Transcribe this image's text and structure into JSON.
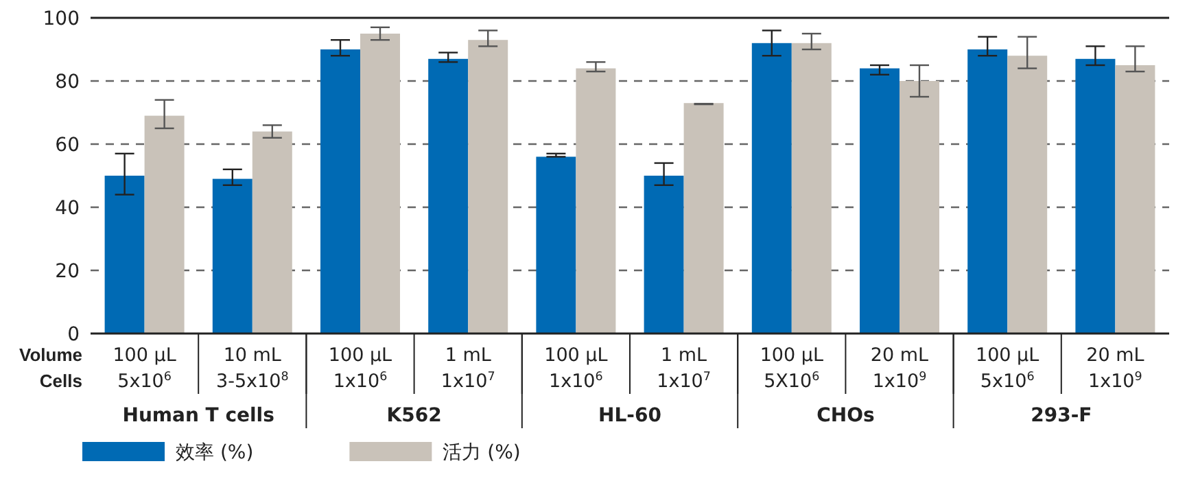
{
  "chart_data": {
    "type": "bar",
    "categories": [
      "100 µL\n5x10$^{6}$",
      "10 mL\n3-5x10$^{8}$",
      "100 µL\n1x10$^{6}$",
      "1 mL\n1x10$^{7}$",
      "100 µL\n1x10$^{6}$",
      "1 mL\n1x10$^{7}$",
      "100 µL\n5X10$^{6}$",
      "20 mL\n1x10$^{9}$",
      "100 µL\n5x10$^{6}$",
      "20 mL\n1x10$^{9}$"
    ],
    "series": [
      {
        "name": "效率 (%)",
        "color": "#006ab4",
        "values": [
          50,
          49,
          90,
          87,
          56,
          50,
          92,
          84,
          90,
          87
        ],
        "errors": [
          [
            44,
            57
          ],
          [
            47,
            52
          ],
          [
            88,
            93
          ],
          [
            86,
            89
          ],
          [
            56,
            57
          ],
          [
            47,
            54
          ],
          [
            88,
            96
          ],
          [
            82,
            85
          ],
          [
            88,
            94
          ],
          [
            85,
            91
          ]
        ]
      },
      {
        "name": "活力 (%)",
        "color": "#c9c2b9",
        "values": [
          69,
          64,
          95,
          93,
          84,
          73,
          92,
          80,
          88,
          85
        ],
        "errors": [
          [
            65,
            74
          ],
          [
            62,
            66
          ],
          [
            93,
            97
          ],
          [
            91,
            96
          ],
          [
            83,
            86
          ],
          [
            72.6,
            72.8
          ],
          [
            90,
            95
          ],
          [
            75,
            85
          ],
          [
            84,
            94
          ],
          [
            83,
            91
          ]
        ]
      }
    ],
    "ylim": [
      0,
      100
    ],
    "yticks": [
      0,
      20,
      40,
      60,
      80,
      100
    ],
    "grid": "y",
    "legend": "bottom left",
    "annotations": [
      "Volume",
      "Cells",
      "Human T cells",
      "K562",
      "HL-60",
      "CHOs",
      "293-F"
    ]
  }
}
